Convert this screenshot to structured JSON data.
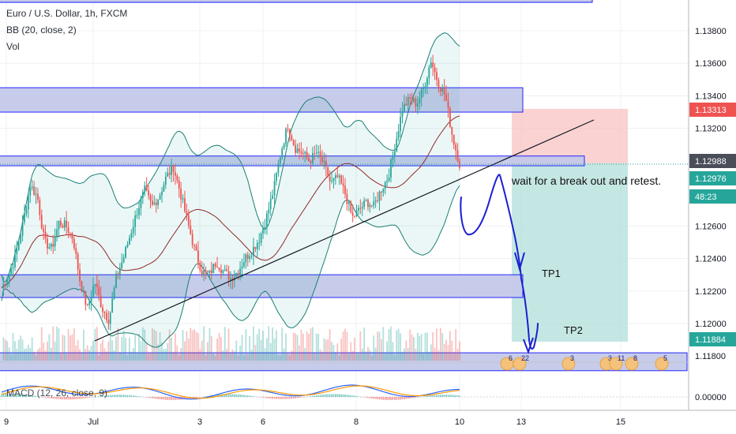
{
  "legend": {
    "symbol": "Euro / U.S. Dollar, 1h, FXCM",
    "bb": "BB (20, close, 2)",
    "vol": "Vol",
    "macd": "MACD (12, 26, close, 9)"
  },
  "annotations": {
    "wait": "wait for a break out and retest.",
    "tp1": "TP1",
    "tp2": "TP2"
  },
  "colors": {
    "up": "#26a69a",
    "down": "#ef5350",
    "zone_fill": "#c5cae9",
    "zone_border": "#1a1aff",
    "bb_band": "#1b7f74",
    "bb_basis": "#8e2a2a",
    "pen": "#1d1fd0",
    "risk": "#f8c3c3",
    "reward": "#b2dfdb"
  },
  "chart_data": {
    "type": "candlestick",
    "title": "Euro / U.S. Dollar, 1h, FXCM",
    "x_ticks": [
      "9",
      "Jul",
      "3",
      "6",
      "8",
      "10",
      "13",
      "15"
    ],
    "y_ticks": [
      "1.13800",
      "1.13600",
      "1.13400",
      "1.13200",
      "1.12600",
      "1.12400",
      "1.12200",
      "1.12000",
      "1.11800"
    ],
    "ylim": [
      1.1168,
      1.1398
    ],
    "price_badges": [
      {
        "value": "1.13313",
        "color": "#ef5350"
      },
      {
        "value": "1.12988",
        "color": "#4a4e59"
      },
      {
        "value": "1.12976",
        "color": "#26a69a"
      },
      {
        "value": "48:23",
        "color": "#26a69a"
      },
      {
        "value": "1.11884",
        "color": "#26a69a"
      }
    ],
    "close_path": [
      1.1222,
      1.123,
      1.1242,
      1.1262,
      1.1285,
      1.1278,
      1.125,
      1.1246,
      1.1262,
      1.126,
      1.1252,
      1.1225,
      1.1209,
      1.1226,
      1.121,
      1.1202,
      1.1228,
      1.124,
      1.1255,
      1.127,
      1.1282,
      1.1272,
      1.1278,
      1.129,
      1.1296,
      1.128,
      1.1262,
      1.1245,
      1.1232,
      1.123,
      1.1238,
      1.1232,
      1.1228,
      1.1232,
      1.124,
      1.1245,
      1.1252,
      1.1265,
      1.1282,
      1.1305,
      1.1322,
      1.1308,
      1.1305,
      1.13,
      1.1305,
      1.1298,
      1.1286,
      1.129,
      1.128,
      1.1265,
      1.127,
      1.1275,
      1.1272,
      1.1282,
      1.129,
      1.131,
      1.1332,
      1.1338,
      1.1335,
      1.1345,
      1.1362,
      1.1348,
      1.134,
      1.1315,
      1.1298
    ],
    "support_resistance_zones": [
      {
        "top": 1.1345,
        "bottom": 1.133
      },
      {
        "top": 1.1303,
        "bottom": 1.1297
      },
      {
        "top": 1.123,
        "bottom": 1.1216
      },
      {
        "top": 1.1182,
        "bottom": 1.1171
      }
    ],
    "trade_plan": {
      "entry": 1.12988,
      "stop": 1.13313,
      "target": 1.11884
    }
  }
}
